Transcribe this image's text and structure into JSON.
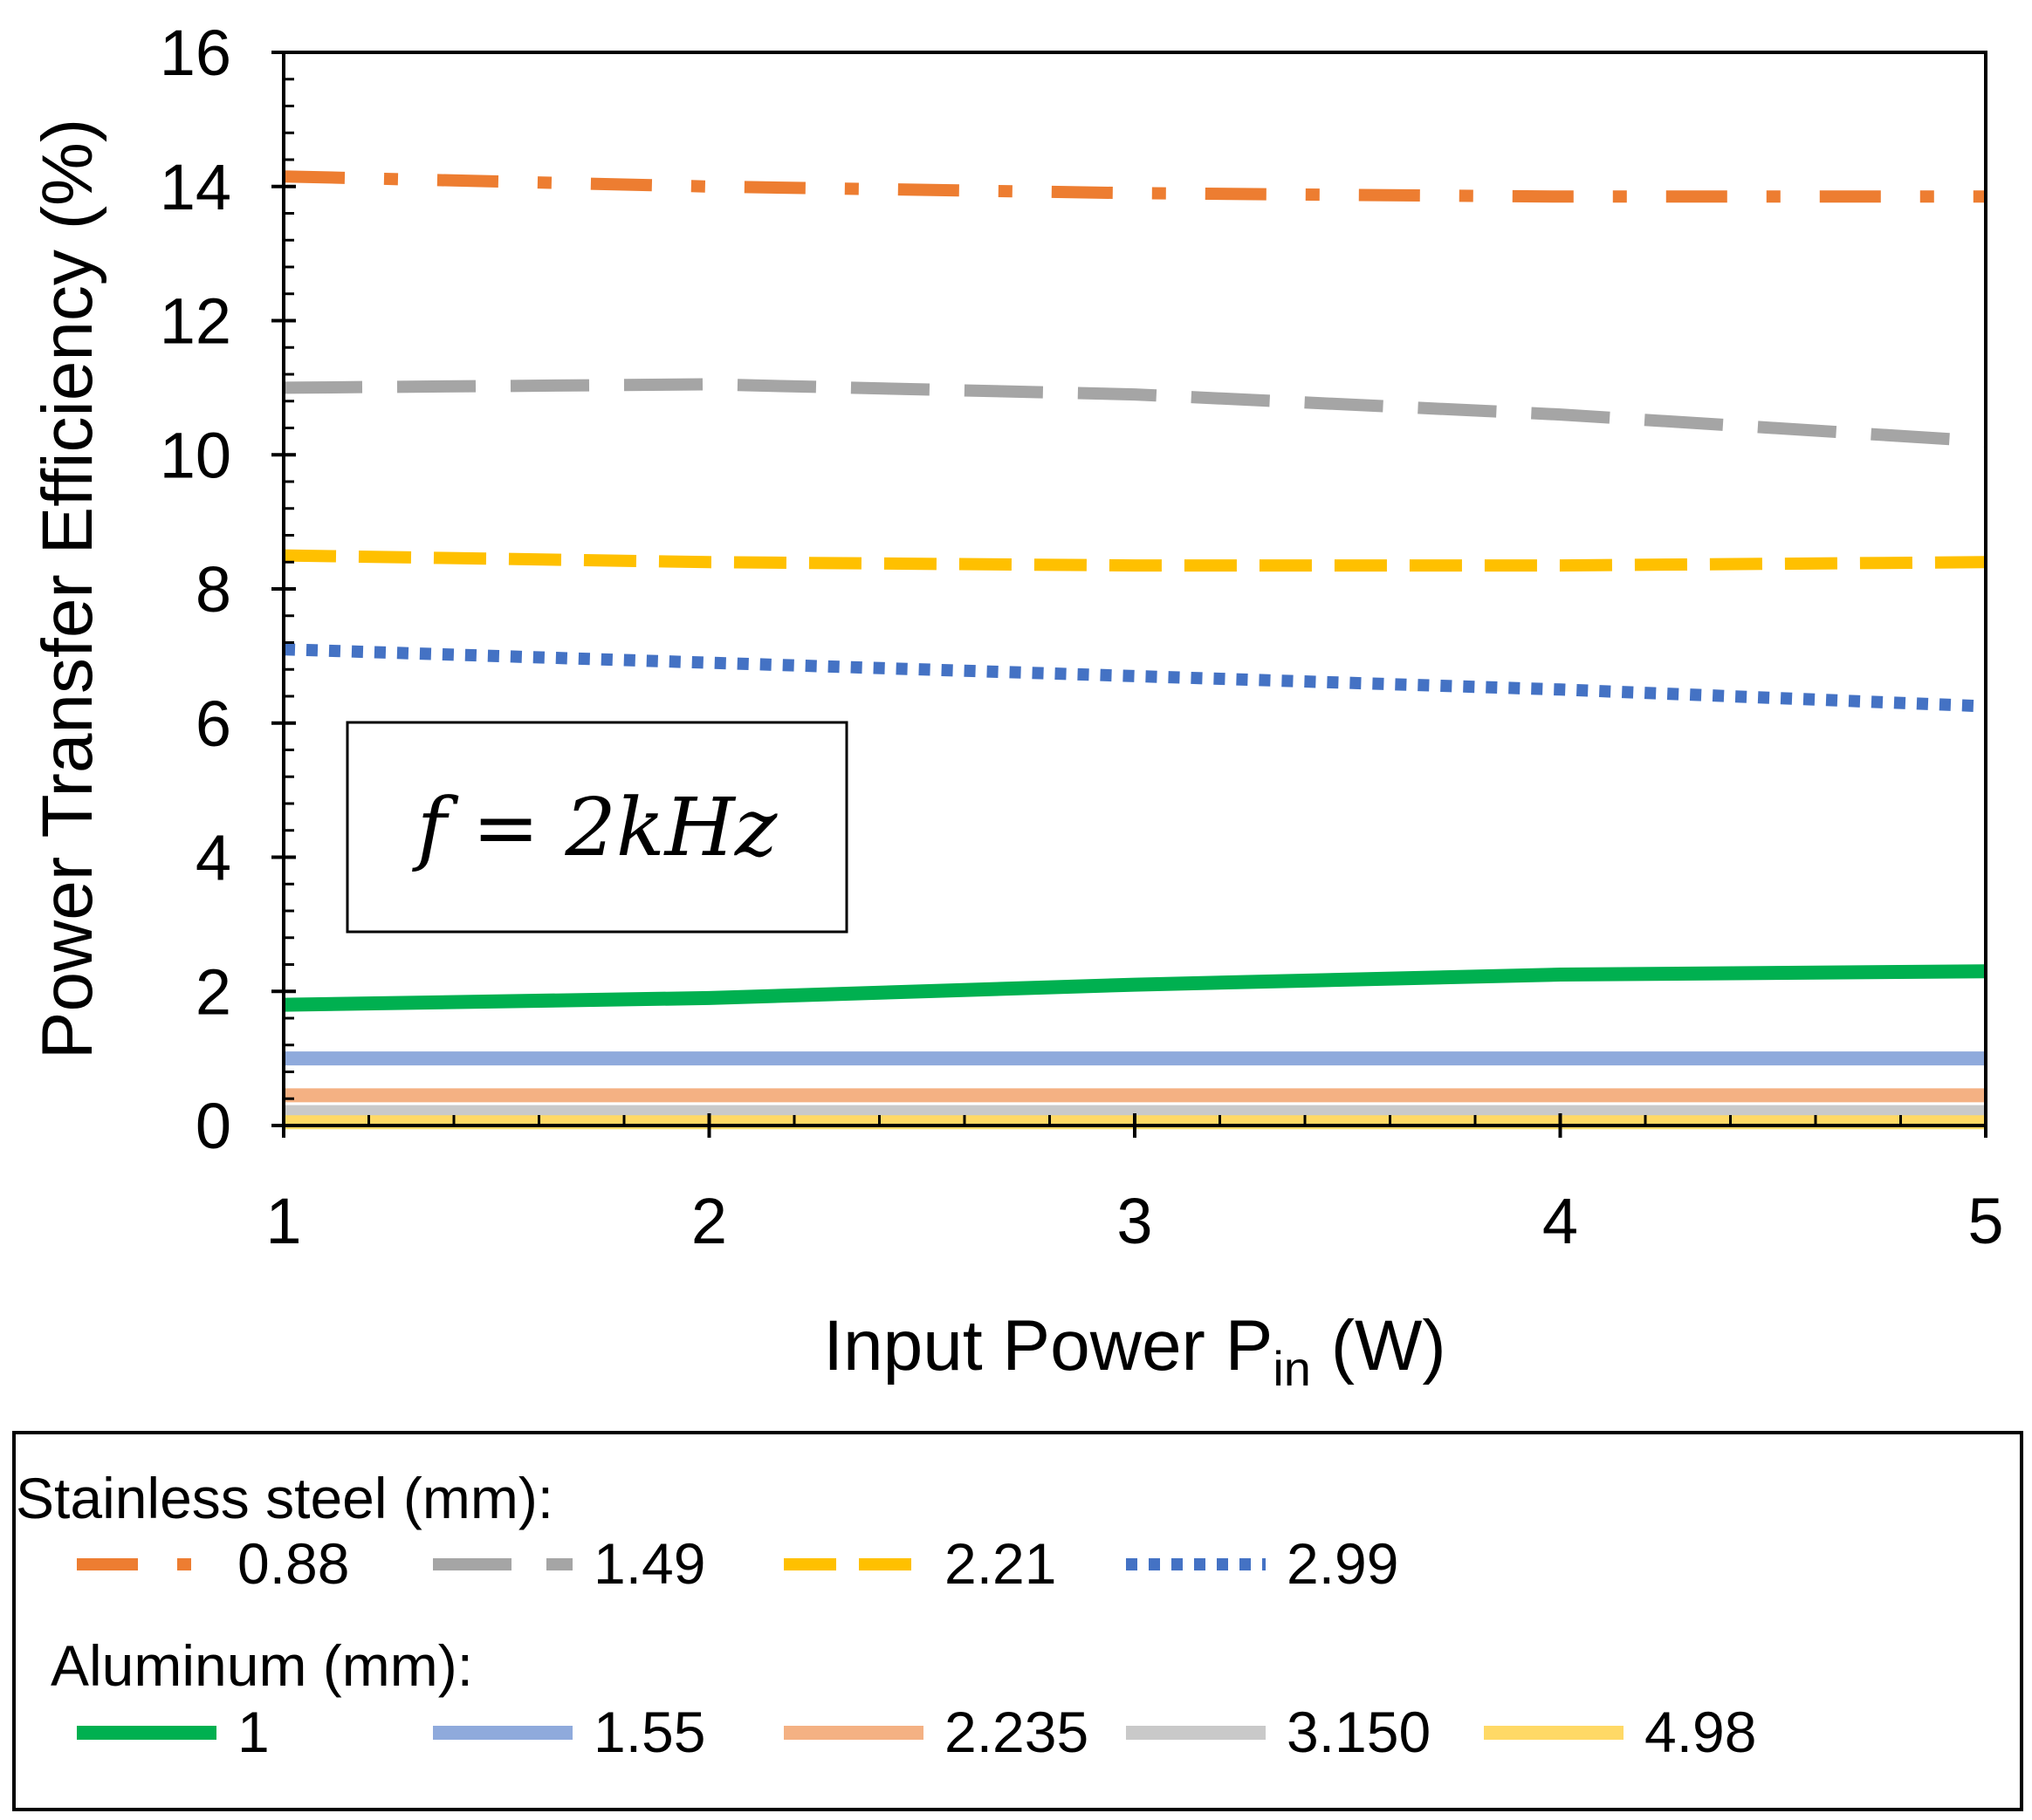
{
  "chart_data": {
    "type": "line",
    "xlabel": "Input Power P",
    "xlabel_sub": "in",
    "xlabel_unit": " (W)",
    "ylabel": "Power Transfer Efficiency (%)",
    "xlim": [
      1,
      5
    ],
    "ylim": [
      0,
      16
    ],
    "x_ticks": [
      "1",
      "2",
      "3",
      "4",
      "5"
    ],
    "y_ticks": [
      "0",
      "2",
      "4",
      "6",
      "8",
      "10",
      "12",
      "14",
      "16"
    ],
    "grid": false,
    "annotation": "f = 2kHz",
    "x": [
      1,
      2,
      3,
      4,
      5
    ],
    "legend": {
      "placement": "bottom",
      "group_labels": [
        "Stainless steel (mm):",
        "Aluminum (mm):"
      ]
    },
    "series": [
      {
        "name": "0.88",
        "group": 0,
        "values": [
          14.15,
          14.0,
          13.9,
          13.85,
          13.85
        ],
        "color": "#ED7D31",
        "style": "dashdot"
      },
      {
        "name": "1.49",
        "group": 0,
        "values": [
          11.0,
          11.05,
          10.9,
          10.6,
          10.2
        ],
        "color": "#A5A5A5",
        "style": "longdash"
      },
      {
        "name": "2.21",
        "group": 0,
        "values": [
          8.5,
          8.4,
          8.35,
          8.35,
          8.4
        ],
        "color": "#FFC000",
        "style": "dash"
      },
      {
        "name": "2.99",
        "group": 0,
        "values": [
          7.1,
          6.9,
          6.7,
          6.5,
          6.25
        ],
        "color": "#4472C4",
        "style": "dot"
      },
      {
        "name": "1",
        "group": 1,
        "values": [
          1.8,
          1.9,
          2.1,
          2.25,
          2.3
        ],
        "color": "#00B050",
        "style": "solid"
      },
      {
        "name": "1.55",
        "group": 1,
        "values": [
          1.0,
          1.0,
          1.0,
          1.0,
          1.0
        ],
        "color": "#8FAADC",
        "style": "solid"
      },
      {
        "name": "2.235",
        "group": 1,
        "values": [
          0.45,
          0.45,
          0.45,
          0.45,
          0.45
        ],
        "color": "#F4B183",
        "style": "solid"
      },
      {
        "name": "3.150",
        "group": 1,
        "values": [
          0.2,
          0.2,
          0.2,
          0.2,
          0.2
        ],
        "color": "#C9C9C9",
        "style": "solid"
      },
      {
        "name": "4.98",
        "group": 1,
        "values": [
          0.05,
          0.05,
          0.05,
          0.05,
          0.05
        ],
        "color": "#FFD966",
        "style": "solid"
      }
    ]
  }
}
